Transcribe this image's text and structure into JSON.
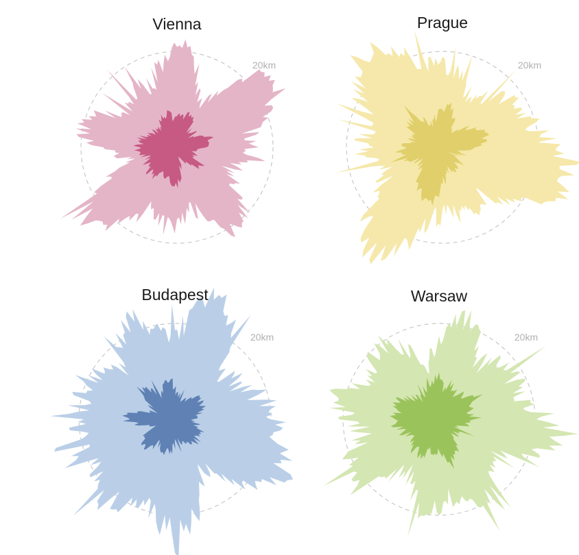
{
  "panels": [
    {
      "title": "Vienna",
      "scale_label": "20km"
    },
    {
      "title": "Prague",
      "scale_label": "20km"
    },
    {
      "title": "Budapest",
      "scale_label": "20km"
    },
    {
      "title": "Warsaw",
      "scale_label": "20km"
    }
  ]
}
